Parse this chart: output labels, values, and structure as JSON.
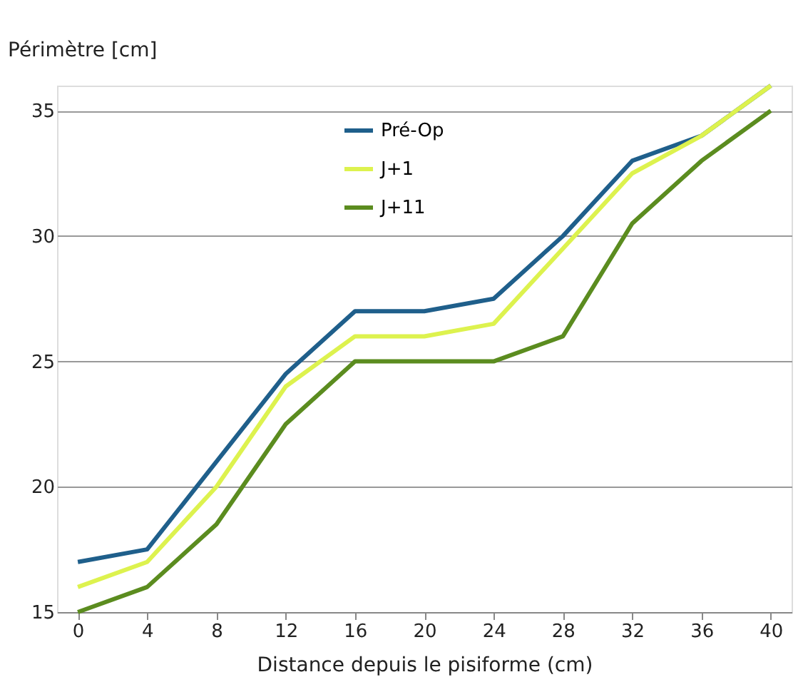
{
  "chart_data": {
    "type": "line",
    "xlabel": "Distance depuis le pisiforme (cm)",
    "ylabel": "Périmètre [cm]",
    "categories": [
      "0",
      "4",
      "8",
      "12",
      "16",
      "20",
      "24",
      "28",
      "32",
      "36",
      "40"
    ],
    "ylim": [
      15,
      36
    ],
    "yticks": [
      15,
      20,
      25,
      30,
      35
    ],
    "grid": "y",
    "legend": "top",
    "marker": "none",
    "line_style": "solid",
    "series": [
      {
        "name": "Pré-Op",
        "color": "#1f5f8b",
        "values": [
          17,
          17.5,
          21,
          24.5,
          27,
          27,
          27.5,
          30,
          33,
          34,
          36
        ]
      },
      {
        "name": "J+1",
        "color": "#ddf24e",
        "values": [
          16,
          17,
          20,
          24,
          26,
          26,
          26.5,
          29.5,
          32.5,
          34,
          36
        ]
      },
      {
        "name": "J+11",
        "color": "#5b8c1f",
        "values": [
          15,
          16,
          18.5,
          22.5,
          25,
          25,
          25,
          26,
          30.5,
          33,
          35
        ]
      }
    ]
  }
}
